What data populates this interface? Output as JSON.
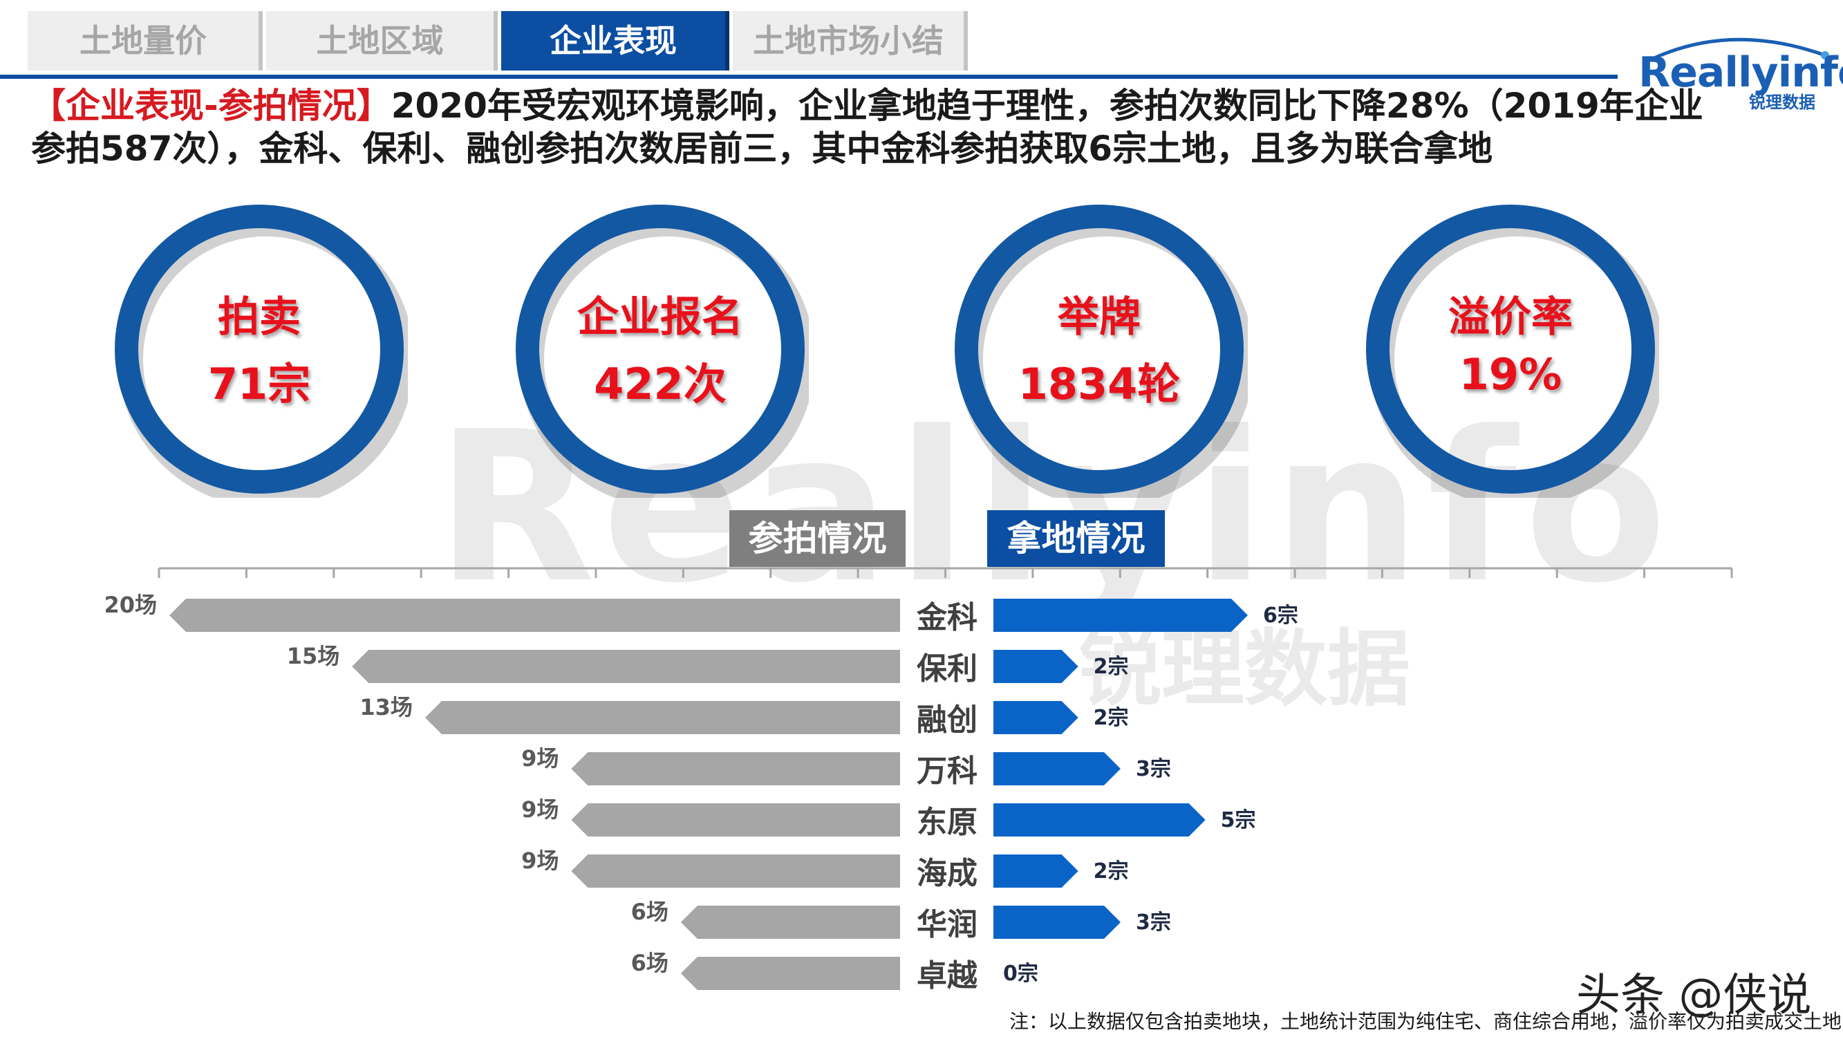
{
  "tabs": [
    {
      "label": "土地量价",
      "active": false
    },
    {
      "label": "土地区域",
      "active": false
    },
    {
      "label": "企业表现",
      "active": true
    },
    {
      "label": "土地市场小结",
      "active": false
    }
  ],
  "logo": {
    "name": "Reallyinfo",
    "sub": "锐理数据"
  },
  "watermark": {
    "main": "Reallyinfo",
    "sub": "锐理数据"
  },
  "headline": {
    "tag": "【企业表现-参拍情况】",
    "text": "2020年受宏观环境影响，企业拿地趋于理性，参拍次数同比下降28%（2019年企业参拍587次），金科、保利、融创参拍次数居前三，其中金科参拍获取6宗土地，且多为联合拿地"
  },
  "kpis": [
    {
      "label": "拍卖",
      "value": "71宗"
    },
    {
      "label": "企业报名",
      "value": "422次"
    },
    {
      "label": "举牌",
      "value": "1834轮"
    },
    {
      "label": "溢价率",
      "value": "19%"
    }
  ],
  "colors": {
    "brand_blue": "#0b4ea2",
    "ring_blue": "#1358a3",
    "gray_bar": "#a6a6a6",
    "kpi_red": "#e8111b",
    "land_blue": "#0a64c8"
  },
  "sections": {
    "left": "参拍情况",
    "right": "拿地情况"
  },
  "chart_data": {
    "type": "bar",
    "categories": [
      "金科",
      "保利",
      "融创",
      "万科",
      "东原",
      "海成",
      "华润",
      "卓越"
    ],
    "series": [
      {
        "name": "参拍情况",
        "values": [
          20,
          15,
          13,
          9,
          9,
          9,
          6,
          6
        ],
        "labels": [
          "20场",
          "15场",
          "13场",
          "9场",
          "9场",
          "9场",
          "6场",
          "6场"
        ]
      },
      {
        "name": "拿地情况",
        "values": [
          6,
          2,
          2,
          3,
          5,
          2,
          3,
          0
        ],
        "labels": [
          "6宗",
          "2宗",
          "2宗",
          "3宗",
          "5宗",
          "2宗",
          "3宗",
          "0宗"
        ]
      }
    ]
  },
  "note": "注：以上数据仅包含拍卖地块，土地统计范围为纯住宅、商住综合用地，溢价率仅为拍卖成交土地",
  "credit": "头条 @侠说"
}
